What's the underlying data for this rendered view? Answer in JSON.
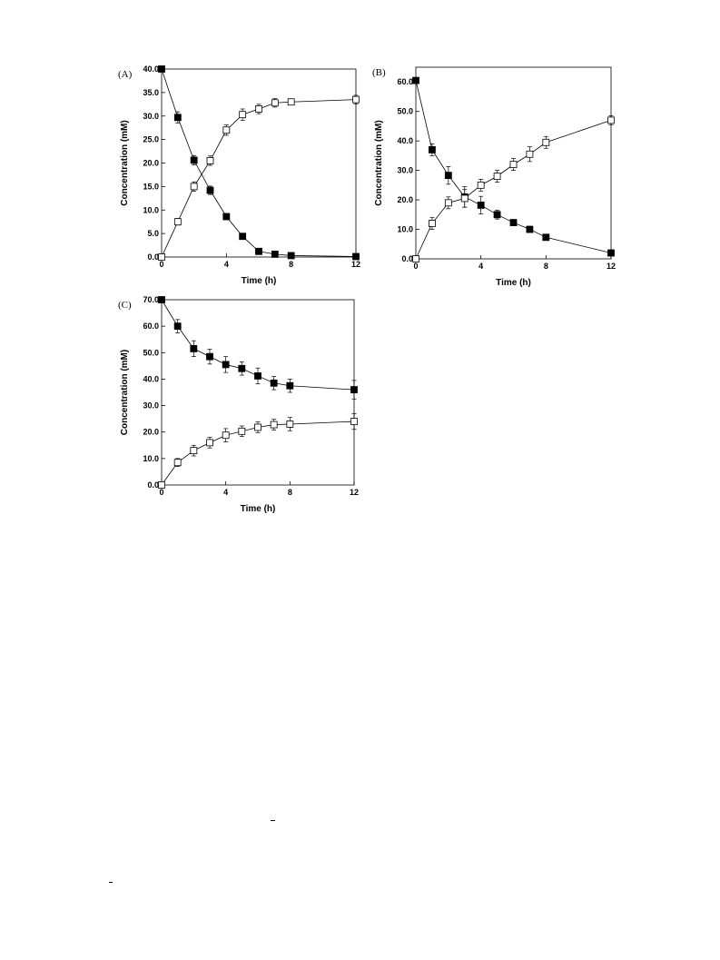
{
  "chart_data": [
    {
      "type": "line",
      "panel_label": "(A)",
      "xlabel": "Time (h)",
      "ylabel": "Concentration (mM)",
      "xlim": [
        0,
        12
      ],
      "ylim": [
        0,
        40
      ],
      "xticks": [
        0,
        4,
        8,
        12
      ],
      "xtick_labels": [
        "0",
        "4",
        "8",
        "12"
      ],
      "yticks": [
        0,
        5,
        10,
        15,
        20,
        25,
        30,
        35,
        40
      ],
      "ytick_labels": [
        "0.0",
        "5.0",
        "10.0",
        "15.0",
        "20.0",
        "25.0",
        "30.0",
        "35.0",
        "40.0"
      ],
      "grid": false,
      "legend": "none",
      "series": [
        {
          "marker": "filled-square",
          "x": [
            0,
            1,
            2,
            3,
            4,
            5,
            6,
            7,
            8,
            12
          ],
          "y": [
            40.0,
            29.7,
            20.6,
            14.2,
            8.6,
            4.4,
            1.2,
            0.6,
            0.3,
            0.1
          ],
          "err": [
            0.4,
            1.2,
            1.0,
            0.9,
            0.5,
            0.4,
            0.2,
            0.2,
            0.1,
            0.1
          ]
        },
        {
          "marker": "open-square",
          "x": [
            0,
            1,
            2,
            3,
            4,
            5,
            6,
            7,
            8,
            12
          ],
          "y": [
            0.0,
            7.5,
            15.0,
            20.5,
            27.0,
            30.3,
            31.5,
            32.8,
            33.0,
            33.5
          ],
          "err": [
            0.2,
            0.7,
            1.0,
            1.0,
            1.1,
            1.2,
            1.0,
            0.9,
            0.6,
            0.9
          ]
        }
      ]
    },
    {
      "type": "line",
      "panel_label": "(B)",
      "xlabel": "Time (h)",
      "ylabel": "Concentration (mM)",
      "xlim": [
        0,
        12
      ],
      "ylim": [
        0,
        65
      ],
      "xticks": [
        0,
        4,
        8,
        12
      ],
      "xtick_labels": [
        "0",
        "4",
        "8",
        "12"
      ],
      "yticks": [
        0,
        10,
        20,
        30,
        40,
        50,
        60
      ],
      "ytick_labels": [
        "0.0",
        "10.0",
        "20.0",
        "30.0",
        "40.0",
        "50.0",
        "60.0"
      ],
      "grid": false,
      "legend": "none",
      "series": [
        {
          "marker": "filled-square",
          "x": [
            0,
            1,
            2,
            3,
            4,
            5,
            6,
            7,
            8,
            12
          ],
          "y": [
            60.5,
            37.0,
            28.3,
            21.0,
            18.2,
            15.0,
            12.3,
            10.0,
            7.3,
            2.0
          ],
          "err": [
            0.5,
            2.0,
            3.0,
            3.5,
            3.0,
            1.5,
            0.8,
            1.0,
            0.8,
            0.5
          ]
        },
        {
          "marker": "open-square",
          "x": [
            0,
            1,
            2,
            3,
            4,
            5,
            6,
            7,
            8,
            12
          ],
          "y": [
            0.0,
            12.0,
            19.0,
            20.5,
            25.0,
            28.0,
            32.0,
            35.5,
            39.5,
            47.0
          ],
          "err": [
            0.2,
            2.0,
            2.0,
            3.0,
            2.0,
            2.0,
            2.0,
            2.5,
            2.0,
            1.5
          ]
        }
      ]
    },
    {
      "type": "line",
      "panel_label": "(C)",
      "xlabel": "Time (h)",
      "ylabel": "Concentration (mM)",
      "xlim": [
        0,
        12
      ],
      "ylim": [
        0,
        70
      ],
      "xticks": [
        0,
        4,
        8,
        12
      ],
      "xtick_labels": [
        "0",
        "4",
        "8",
        "12"
      ],
      "yticks": [
        0,
        10,
        20,
        30,
        40,
        50,
        60,
        70
      ],
      "ytick_labels": [
        "0.0",
        "10.0",
        "20.0",
        "30.0",
        "40.0",
        "50.0",
        "60.0",
        "70.0"
      ],
      "grid": false,
      "legend": "none",
      "series": [
        {
          "marker": "filled-square",
          "x": [
            0,
            1,
            2,
            3,
            4,
            5,
            6,
            7,
            8,
            12
          ],
          "y": [
            70.0,
            60.0,
            51.5,
            48.5,
            45.5,
            44.0,
            41.2,
            38.5,
            37.5,
            36.0
          ],
          "err": [
            0.5,
            2.5,
            3.0,
            2.8,
            3.0,
            2.5,
            3.0,
            2.5,
            2.5,
            3.5
          ]
        },
        {
          "marker": "open-square",
          "x": [
            0,
            1,
            2,
            3,
            4,
            5,
            6,
            7,
            8,
            12
          ],
          "y": [
            0.0,
            8.5,
            13.0,
            16.0,
            18.8,
            20.3,
            21.8,
            22.8,
            23.0,
            24.0
          ],
          "err": [
            0.2,
            1.5,
            2.0,
            2.0,
            2.5,
            2.0,
            2.0,
            2.0,
            2.5,
            3.0
          ]
        }
      ]
    }
  ]
}
